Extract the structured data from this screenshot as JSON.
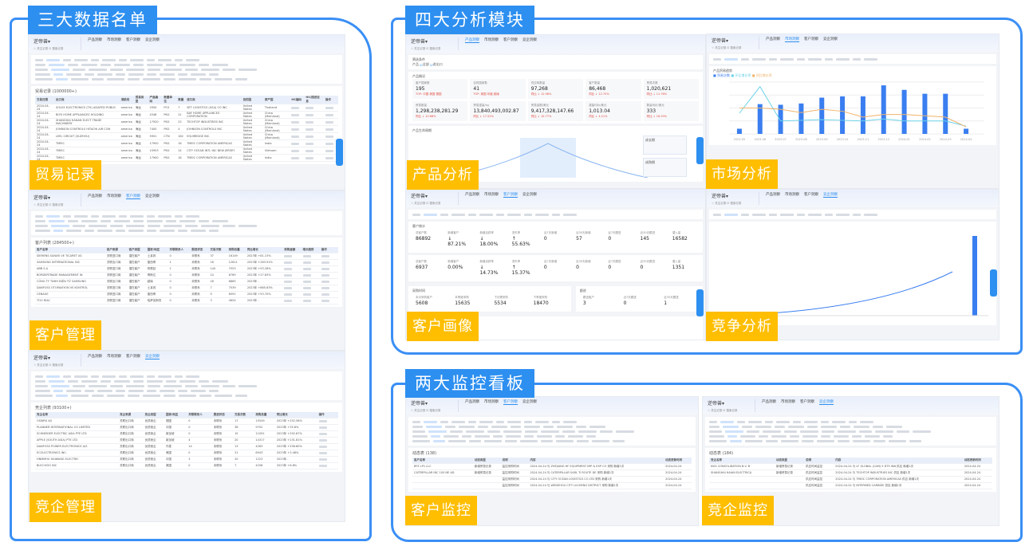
{
  "sections": {
    "lists": {
      "title": "三大数据名单",
      "modules": [
        "贸易记录",
        "客户管理",
        "竞企管理"
      ]
    },
    "analysis": {
      "title": "四大分析模块",
      "modules": [
        "产品分析",
        "市场分析",
        "客户画像",
        "竞争分析"
      ]
    },
    "monitor": {
      "title": "两大监控看板",
      "modules": [
        "客户监控",
        "竞企监控"
      ]
    }
  },
  "app": {
    "brand": "逆帝兽▾",
    "sub": "☆ 关注记录  ⊡ 搜索记录",
    "main_tabs": [
      "产品洞察",
      "市场洞察",
      "客户洞察",
      "竞企洞察"
    ]
  },
  "trade": {
    "table_title": "贸易记录 (1000000+)",
    "headers": [
      "交易日期",
      "出口商",
      "港航线",
      "贸易类型",
      "产品编码",
      "数量单位",
      "数量",
      "进口商",
      "目的国",
      "原产国",
      "HS编码",
      "HS/描述信息",
      "操作"
    ],
    "rows": [
      [
        "2024-04-24",
        "SOLEX ELECTRONICS (TH) ASIAFED PUBLIC",
        "america",
        "海运",
        "2950",
        "PCS",
        "7",
        "SET LOGISTICS (USA) CO INC",
        "United States",
        "Thailand"
      ],
      [
        "2024-04-24",
        "BOYI HOME APPLIANCES HOLDING",
        "america",
        "海运",
        "4346",
        "PKG",
        "21",
        "BAY HOME APPLIANCES CORPORATION",
        "United States",
        "China (Mainland)"
      ],
      [
        "2024-04-24",
        "SHANGHAI HANAN ELECT TRADE MACHINERY",
        "america",
        "海运",
        "17920",
        "PKG",
        "23",
        "TECHTOP INDUSTRIES INC",
        "United States",
        "China (Mainland)"
      ],
      [
        "2024-04-24",
        "JOHNSON CONTROLS HITACHI AIR CON",
        "america",
        "海运",
        "7400",
        "PKG",
        "4",
        "JOHNSON CONTROLS INC",
        "United States",
        "China (Mainland)"
      ],
      [
        "2024-04-24",
        "LEEL CIRCUIT (SUZHOU)",
        "america",
        "海运",
        "5901",
        "CTN",
        "162",
        "EQUIREDGE INC.",
        "United States",
        "China (Mainland)"
      ],
      [
        "2024-04-24",
        "TMEIC",
        "america",
        "海运",
        "17900",
        "PKG",
        "16",
        "TMEIC CORPORATION AMERICAS",
        "United States",
        "India"
      ],
      [
        "2024-04-24",
        "TMEIC",
        "america",
        "海运",
        "15953",
        "PKG",
        "24",
        "CITY OCEAN INTL INC NEW JERSEY",
        "United States",
        "Vietnam"
      ],
      [
        "2024-04-24",
        "TMEIC",
        "america",
        "海运",
        "17900",
        "PKG",
        "16",
        "TMEIC CORPORATION AMERICAS",
        "United States",
        "India"
      ]
    ]
  },
  "customers": {
    "table_title": "客户列表 (284500+)",
    "headers": [
      "客户名称",
      "客户来源",
      "客户类型",
      "国家/地区",
      "关联联系人",
      "跟进状态",
      "交易次数",
      "采购总量",
      "同比增长",
      "采购金额",
      "增长趋势",
      "操作"
    ],
    "rows": [
      [
        "SIEMENS SANAYI VE TICARET AS",
        "关联进口商",
        "潜在客户",
        "土耳其",
        "0",
        "未联系",
        "37",
        "16149",
        "2023年 +81.13%"
      ],
      [
        "SAMSUNG INTERNATIONAL INC",
        "关联出口商",
        "潜在客户",
        "墨西哥",
        "1",
        "未联系",
        "16",
        "12611",
        "2023年 +283.91%"
      ],
      [
        "ABB S.A",
        "关联进口商",
        "潜在客户",
        "阿根廷",
        "1",
        "未联系",
        "140",
        "7553",
        "2023年 +93.28%"
      ],
      [
        "BORDERTRADE MANAGEMENT IN",
        "关联进口商",
        "潜在客户",
        "哥斯达",
        "0",
        "未联系",
        "24",
        "6769",
        "2023年 +27.83%"
      ],
      [
        "CÔNG TY TNHH ĐIỆN TỬ SAMSUNG",
        "关联出口商",
        "潜在客户",
        "越南",
        "0",
        "未联系",
        "16",
        "6865",
        "2023年 -"
      ],
      [
        "DANFOSS OTOMASYON VE KONTROL",
        "关联进口商",
        "潜在客户",
        "土耳其",
        "0",
        "未联系",
        "7",
        "7539",
        "2023年 +865.83%"
      ],
      [
        "CENAGE",
        "关联进口商",
        "潜在客户",
        "墨西哥",
        "0",
        "未联系",
        "9",
        "6591",
        "2023年 +53.70%"
      ],
      [
        "TOO RIAC",
        "关联进口商",
        "潜在客户",
        "哈萨克斯坦",
        "0",
        "未联系",
        "3",
        "4654",
        "2023年 -"
      ]
    ]
  },
  "competitors": {
    "table_title": "竞企列表 (93100+)",
    "headers": [
      "竞企名称",
      "竞企来源",
      "竞企类型",
      "国家/地区",
      "关联联系人",
      "跟进状态",
      "交易次数",
      "采购总量",
      "同比增长",
      "操作"
    ],
    "rows": [
      [
        "OSWRS AG",
        "关联出口商",
        "优质竞企",
        "德国",
        "0",
        "未联系",
        "17",
        "15549",
        "2023年 +252.56%"
      ],
      [
        "PLANNER INTERNATIONAL CO LIMITED",
        "关联出口商",
        "优质竞企",
        "中国",
        "0",
        "未联系",
        "38",
        "9702",
        "2023年 +35.8%"
      ],
      [
        "SCHNEIDER ELECTRIC ASIA PTE LTD",
        "关联出口商",
        "优质竞企",
        "新加坡",
        "0",
        "未联系",
        "15",
        "11091",
        "2023年 +292.87%"
      ],
      [
        "APPLE (SOUTH ASIA) PTE LTD",
        "关联出口商",
        "优质竞企",
        "新加坡",
        "4",
        "未联系",
        "20",
        "14317",
        "2023年 +231.81%"
      ],
      [
        "DANFOSS POWER ELECTRONICS A/S",
        "关联出口商",
        "优质竞企",
        "丹麦",
        "14",
        "未联系",
        "13",
        "4263",
        "2023年 +256.80%"
      ],
      [
        "ECOLECTRONICS INC.",
        "关联出口商",
        "优质竞企",
        "美国",
        "0",
        "未联系",
        "21",
        "6943",
        "2023年 +3.48%"
      ],
      [
        "HNMMHU HAIWANG ELECTRIC",
        "关联出口商",
        "优质竞企",
        "中国",
        "3",
        "未联系",
        "20",
        "1223",
        "2023年 -"
      ],
      [
        "BUCCHOO INC",
        "关联出口商",
        "优质竞企",
        "美国",
        "0",
        "未联系",
        "7",
        "4256",
        "2023年 +6.8%"
      ]
    ]
  },
  "product_analysis": {
    "filter_label": "筛选条件",
    "product_label": "产品",
    "checks": [
      "全部",
      "进出口"
    ],
    "overview_title": "产品概况",
    "lifecycle_title": "产品生命周期",
    "stats": [
      {
        "label": "客户国家数",
        "value": "195",
        "note": "TOP: 中国 美国 德国"
      },
      {
        "label": "目的国家数",
        "value": "41",
        "note": "TOP: 美国 印度 越南"
      },
      {
        "label": "供应商数量",
        "value": "97,268",
        "note": "同比 ↓ 12.98%"
      },
      {
        "label": "客户数量",
        "value": "86,468",
        "note": "同比 ↓ 12.75%"
      },
      {
        "label": "贸易次数",
        "value": "1,020,621",
        "note": "同比 ↓ 11.76%"
      },
      {
        "label": "贸易数量",
        "value": "1,298,238,281.29",
        "note": "同比 ↓ 10.68%"
      },
      {
        "label": "贸易重量/kg",
        "value": "13,840,493,002.87",
        "note": "同比 ↓ 17.52%"
      },
      {
        "label": "贸易金额/美元",
        "value": "9,417,328,147.66",
        "note": "同比 ↓ 10.77%"
      },
      {
        "label": "重量均价/美元",
        "value": "1,013.04",
        "note": "同比 ↓ 4.21%"
      },
      {
        "label": "数量均价/美元",
        "value": "333",
        "note": "同比 ↓ 16.29%"
      }
    ],
    "stage_cards": [
      "成长期",
      "成熟期"
    ]
  },
  "market_analysis": {
    "chart_title": "产品贸易趋势",
    "legend": [
      "贸易次数",
      "环比增长率",
      "同比增长率"
    ],
    "chart_data": {
      "type": "bar",
      "categories": [
        "2023-05",
        "2023-06",
        "2023-07",
        "2023-08",
        "2023-09",
        "2023-10",
        "2023-11",
        "2023-12",
        "2024-01",
        "2024-02",
        "2024-03",
        "2024-04"
      ],
      "series": [
        {
          "name": "贸易次数",
          "values": [
            8,
            46,
            45,
            47,
            56,
            58,
            58,
            75,
            68,
            62,
            62,
            8
          ]
        },
        {
          "name": "环比增长率",
          "values": [
            32,
            73,
            20,
            21,
            22,
            21,
            20,
            23,
            20,
            20,
            20,
            12
          ]
        },
        {
          "name": "同比增长率",
          "values": [
            40,
            40,
            38,
            33,
            38,
            35,
            26,
            30,
            30,
            28,
            26,
            11
          ]
        }
      ],
      "ylim": [
        0,
        80
      ]
    }
  },
  "customer_portrait": {
    "stats_title": "客户统计",
    "stats": [
      {
        "label": "总客户数",
        "value": "86892"
      },
      {
        "label": "新增客户",
        "value": "↓ 87.21%"
      },
      {
        "label": "新增活跃率",
        "value": "↓ 18.00%"
      },
      {
        "label": "流失率",
        "value": "↑ 55.63%"
      },
      {
        "label": "近7天新增",
        "value": "0"
      },
      {
        "label": "近30天新增",
        "value": "57"
      },
      {
        "label": "近7天跟进",
        "value": "0"
      },
      {
        "label": "近30天跟进",
        "value": "145"
      },
      {
        "label": "潜入量",
        "value": "16582"
      }
    ],
    "tab_stats": [
      {
        "label": "总客户数",
        "value": "6937"
      },
      {
        "label": "新增客户",
        "value": "0.00%"
      },
      {
        "label": "新增活跃率",
        "value": "↓ 14.73%"
      },
      {
        "label": "流失率",
        "value": "↑ 15.37%"
      },
      {
        "label": "近7天新增",
        "value": "0"
      },
      {
        "label": "近30天新增",
        "value": "0"
      },
      {
        "label": "近7天跟进",
        "value": "0"
      },
      {
        "label": "近30天跟进",
        "value": "0"
      },
      {
        "label": "潜入量",
        "value": "1351"
      }
    ],
    "purchase_title": "采购时间",
    "purchase": [
      {
        "label": "本月采购客户",
        "value": "5608"
      },
      {
        "label": "本季度采购",
        "value": "15635"
      },
      {
        "label": "下月需采购",
        "value": "5534"
      },
      {
        "label": "下季度采购",
        "value": "18470"
      }
    ],
    "follow_title": "跟进",
    "follow": [
      {
        "label": "跟进客户",
        "value": "3"
      },
      {
        "label": "近7天跟进",
        "value": "0"
      },
      {
        "label": "近30天跟进",
        "value": "1"
      }
    ]
  },
  "monitor_customer": {
    "table_title": "动态表 (138)",
    "headers": [
      "客户名称",
      "动态类型",
      "说明",
      "内容",
      "动态更新时间"
    ],
    "rows": [
      [
        "RFE LP1 LLC",
        "新增贸易记录",
        "监控采购时间",
        "2024-04-24 与 ZHEJIANG HF EQUIPMENT IMP & EXP CO 采购 新增1次",
        "2024-04-24"
      ],
      [
        "CATERPILLAR INC 100 NE AD",
        "新增贸易记录",
        "监控采购时间",
        "2024-04-24 与 CATERPILLAR SARL TI ROUTE DE 采购 新增1次",
        "2024-04-24"
      ],
      [
        "",
        "",
        "监控采购时间",
        "2024-04-24 与 CITY OCEAN LOGISTICS CO LTD 采购 新增1次",
        "2024-04-24"
      ],
      [
        "",
        "",
        "监控采购时间",
        "2024-04-24 与 WENZHOU CITY LUCHENG DISTRICT 采购 新增1次",
        "2024-04-24"
      ]
    ]
  },
  "monitor_competitor": {
    "table_title": "动态表 (184)",
    "headers": [
      "竞企名称",
      "动态类型",
      "说明",
      "内容",
      "动态更新时间"
    ],
    "rows": [
      [
        "NVG CONSOLIDATION B.V. B",
        "新增贸易记录",
        "供应时间监控",
        "2024-04-24 与 LF GLOBAL (CAM) 5 DTS INN 供应 新增1次",
        "2024-04-24"
      ],
      [
        "SHANGHAI HAIAN ELECTRICA",
        "新增贸易记录",
        "供应时间监控",
        "2024-04-24 与 TECHTOP INDUSTRIES INC 供应 新增1次",
        "2024-04-24"
      ],
      [
        "",
        "",
        "供应时间监控",
        "2024-04-24 与 TMEIC CORPORATION AMERICAS 供应 新增1次",
        "2024-04-24"
      ],
      [
        "",
        "",
        "供应时间监控",
        "2024-04-24 与 INTERMED CARBIDE 供应 新增1次",
        "2024-04-24"
      ]
    ]
  },
  "colors": {
    "primary": "#2d8ff0",
    "accent": "#ffbe00",
    "border": "#3a8ff5"
  }
}
